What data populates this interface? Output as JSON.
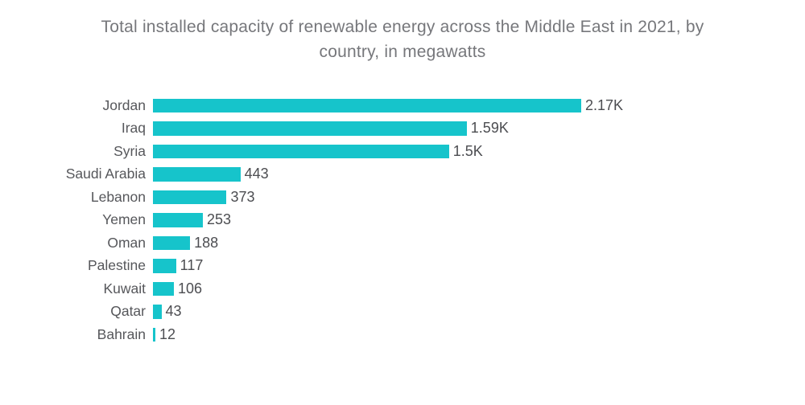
{
  "header": {
    "title_lines": [
      "Total installed capacity of renewable energy across the Middle East in 2021, by",
      "country, in megawatts"
    ]
  },
  "colors": {
    "background": "#FFFFFF",
    "bar": "#16C4CB",
    "title_text": "#76777B",
    "category_text": "#56575B",
    "value_text": "#4C4D51"
  },
  "chart_data": {
    "type": "bar",
    "orientation": "horizontal",
    "title": "Total installed capacity of renewable energy across the Middle East in 2021, by country, in megawatts",
    "xlabel": "",
    "ylabel": "",
    "unit": "megawatts",
    "xlim": [
      0,
      2170
    ],
    "grid": false,
    "legend": false,
    "categories": [
      "Jordan",
      "Iraq",
      "Syria",
      "Saudi Arabia",
      "Lebanon",
      "Yemen",
      "Oman",
      "Palestine",
      "Kuwait",
      "Qatar",
      "Bahrain"
    ],
    "values": [
      2170,
      1590,
      1500,
      443,
      373,
      253,
      188,
      117,
      106,
      43,
      12
    ],
    "value_labels": [
      "2.17K",
      "1.59K",
      "1.5K",
      "443",
      "373",
      "253",
      "188",
      "117",
      "106",
      "43",
      "12"
    ]
  }
}
